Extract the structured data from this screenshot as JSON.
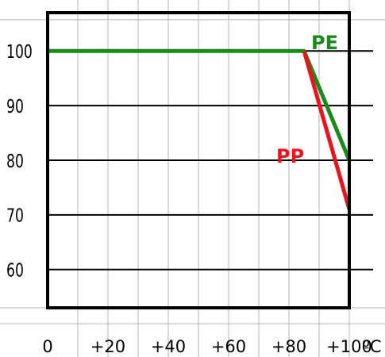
{
  "chart_data": {
    "type": "line",
    "title": "",
    "xlabel": "",
    "ylabel": "",
    "x_ticks": [
      {
        "value": 0,
        "label": "0"
      },
      {
        "value": 20,
        "label": "+20"
      },
      {
        "value": 40,
        "label": "+40"
      },
      {
        "value": 60,
        "label": "+60"
      },
      {
        "value": 80,
        "label": "+80"
      },
      {
        "value": 100,
        "label": "+100"
      }
    ],
    "x_unit": "ºC",
    "y_ticks": [
      {
        "value": 60,
        "label": "60"
      },
      {
        "value": 70,
        "label": "70"
      },
      {
        "value": 80,
        "label": "80"
      },
      {
        "value": 90,
        "label": "90"
      },
      {
        "value": 100,
        "label": "100"
      }
    ],
    "xlim": [
      0,
      100
    ],
    "ylim": [
      53,
      107
    ],
    "grid": true,
    "series": [
      {
        "name": "PE",
        "color": "#1a8a1a",
        "points": [
          [
            0,
            100
          ],
          [
            85,
            100
          ],
          [
            100,
            80
          ]
        ]
      },
      {
        "name": "PP",
        "color": "#e8141e",
        "points": [
          [
            85,
            100
          ],
          [
            100,
            71
          ]
        ]
      }
    ]
  }
}
